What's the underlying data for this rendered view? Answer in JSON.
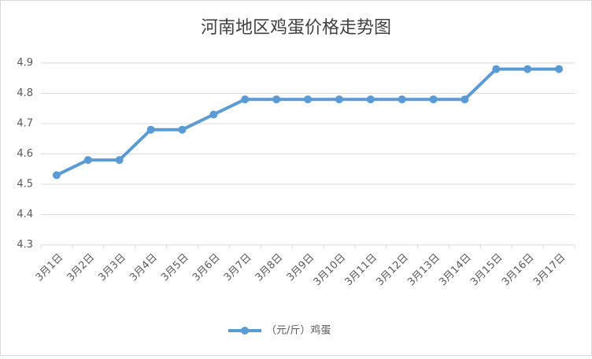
{
  "chart_data": {
    "type": "line",
    "title": "河南地区鸡蛋价格走势图",
    "categories": [
      "3月1日",
      "3月2日",
      "3月3日",
      "3月4日",
      "3月5日",
      "3月6日",
      "3月7日",
      "3月8日",
      "3月9日",
      "3月10日",
      "3月11日",
      "3月12日",
      "3月13日",
      "3月14日",
      "3月15日",
      "3月16日",
      "3月17日"
    ],
    "series": [
      {
        "name": "（元/斤）鸡蛋",
        "color": "#5b9bd5",
        "values": [
          4.53,
          4.58,
          4.58,
          4.68,
          4.68,
          4.73,
          4.78,
          4.78,
          4.78,
          4.78,
          4.78,
          4.78,
          4.78,
          4.78,
          4.88,
          4.88,
          4.88
        ]
      }
    ],
    "ylim": [
      4.3,
      4.9
    ],
    "yticks": [
      4.3,
      4.4,
      4.5,
      4.6,
      4.7,
      4.8,
      4.9
    ],
    "grid": true,
    "legend": "bottom"
  }
}
